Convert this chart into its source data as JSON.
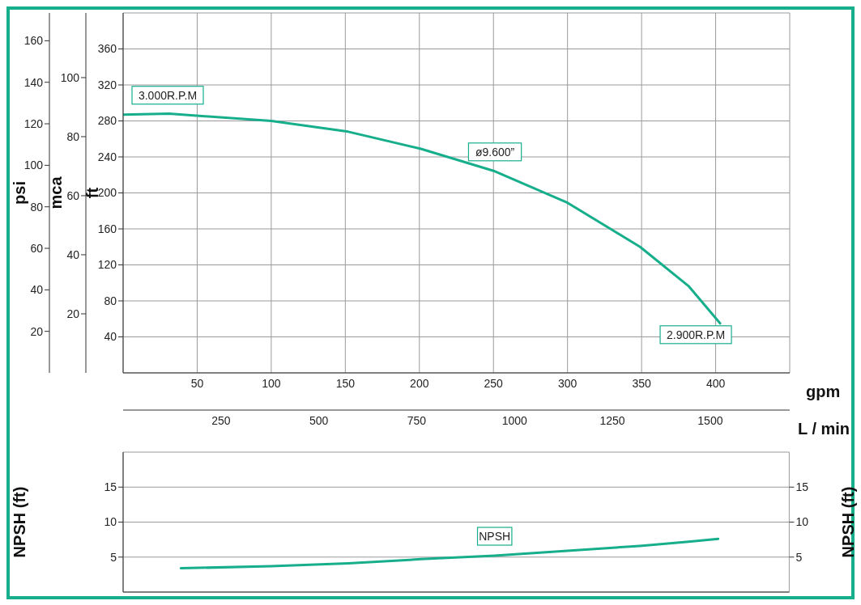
{
  "chart_data": [
    {
      "type": "line",
      "xlabel": "gpm",
      "x2label": "L / min",
      "ylabel": "ft",
      "y2label": "mca",
      "y3label": "psi",
      "xlim": [
        0,
        450
      ],
      "xticks": [
        50,
        100,
        150,
        200,
        250,
        300,
        350,
        400
      ],
      "x2lim": [
        0,
        1703
      ],
      "x2ticks": [
        250,
        500,
        750,
        1000,
        1250,
        1500
      ],
      "ylim": [
        0,
        400
      ],
      "yticks": [
        40,
        80,
        120,
        160,
        200,
        240,
        280,
        320,
        360
      ],
      "y2lim": [
        0,
        121.9
      ],
      "y2ticks": [
        20,
        40,
        60,
        80,
        100
      ],
      "y3lim": [
        0,
        173.4
      ],
      "y3ticks": [
        20,
        40,
        60,
        80,
        100,
        120,
        140,
        160
      ],
      "grid": true,
      "series": [
        {
          "color": "#17ae8c",
          "x": [
            0,
            31,
            100,
            152,
            201,
            251,
            300,
            349,
            382,
            403
          ],
          "values": [
            287,
            288,
            280,
            268,
            249,
            224,
            189,
            140,
            96,
            55
          ]
        }
      ],
      "annotations": [
        "3.000R.P.M",
        "ø9.600”",
        "2.900R.P.M"
      ]
    },
    {
      "type": "line",
      "ylabel": "NPSH (ft)",
      "y2label": "NPSH (ft)",
      "xlim": [
        0,
        450
      ],
      "ylim": [
        0,
        20
      ],
      "yticks": [
        5,
        10,
        15
      ],
      "y2lim": [
        0,
        20
      ],
      "y2ticks": [
        5,
        10,
        15
      ],
      "tick_labels": "y",
      "grid": true,
      "series": [
        {
          "color": "#17ae8c",
          "x": [
            39,
            100,
            152,
            201,
            251,
            300,
            349,
            382,
            402
          ],
          "values": [
            3.4,
            3.7,
            4.1,
            4.7,
            5.2,
            5.9,
            6.6,
            7.2,
            7.6
          ]
        }
      ],
      "annotations": [
        "NPSH"
      ]
    }
  ]
}
